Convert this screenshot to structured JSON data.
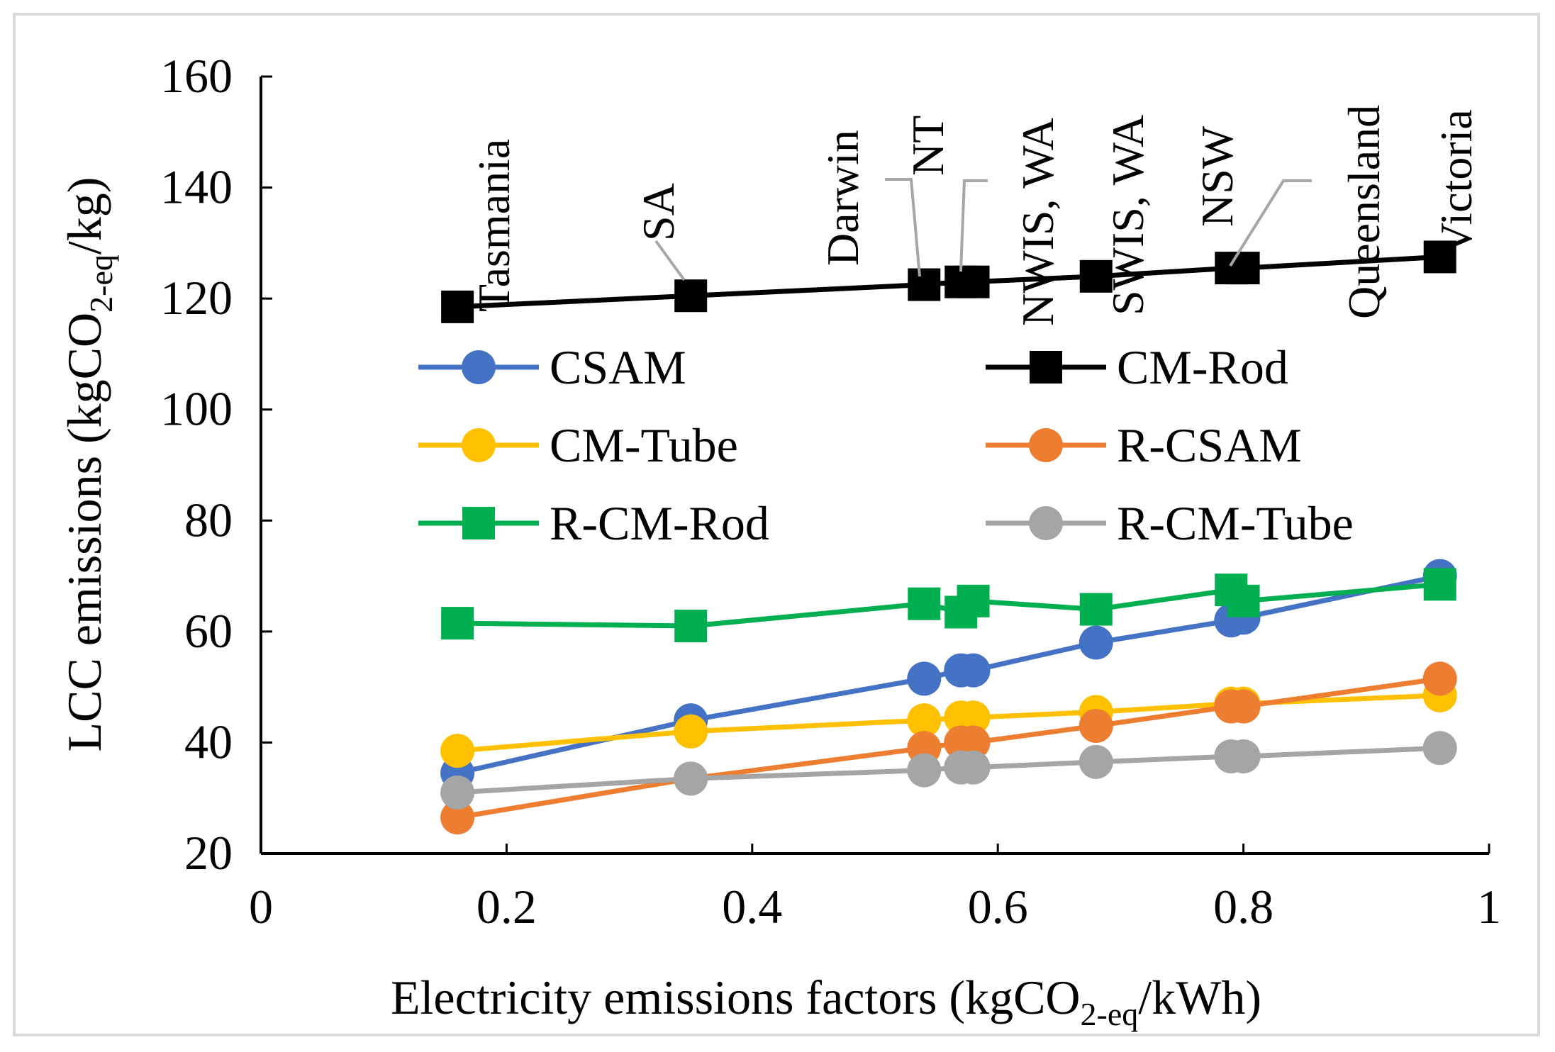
{
  "chart_data": {
    "type": "line",
    "title": "",
    "xlabel": {
      "prefix": "Electricity emissions factors (kgCO",
      "sub": "2-eq",
      "suffix": "/kWh)"
    },
    "ylabel": {
      "prefix": "LCC emissions (kgCO",
      "sub": "2-eq",
      "suffix": "/kg)"
    },
    "xlim": [
      0,
      1
    ],
    "ylim": [
      20,
      160
    ],
    "x_ticks": [
      "0",
      "0.2",
      "0.4",
      "0.6",
      "0.8",
      "1"
    ],
    "y_ticks": [
      "20",
      "40",
      "60",
      "80",
      "100",
      "120",
      "140",
      "160"
    ],
    "grid": false,
    "legend_position": "middle",
    "x": [
      0.16,
      0.35,
      0.54,
      0.57,
      0.58,
      0.68,
      0.79,
      0.8,
      0.96
    ],
    "series": [
      {
        "name": "CSAM",
        "color": "#4472C4",
        "marker": "circle",
        "values": [
          34.5,
          44,
          51.5,
          53,
          53,
          58,
          62,
          62.5,
          70
        ]
      },
      {
        "name": "CM-Rod",
        "color": "#000000",
        "marker": "square",
        "values": [
          118.5,
          120.5,
          122.5,
          123,
          123,
          124,
          125.5,
          125.5,
          127.5
        ]
      },
      {
        "name": "CM-Tube",
        "color": "#FFC000",
        "marker": "circle",
        "values": [
          38.5,
          42,
          44,
          44.5,
          44.5,
          45.5,
          47,
          47,
          48.5
        ]
      },
      {
        "name": "R-CSAM",
        "color": "#ED7D31",
        "marker": "circle",
        "values": [
          26.5,
          33.5,
          39,
          40,
          40,
          43,
          46.5,
          46.5,
          51.5
        ]
      },
      {
        "name": "R-CM-Rod",
        "color": "#00B050",
        "marker": "square",
        "values": [
          61.5,
          61,
          65,
          63.5,
          65.5,
          64,
          67.5,
          65.5,
          68.5
        ]
      },
      {
        "name": "R-CM-Tube",
        "color": "#A5A5A5",
        "marker": "circle",
        "values": [
          31,
          33.5,
          35,
          35.5,
          35.5,
          36.5,
          37.5,
          37.5,
          39
        ]
      }
    ],
    "annotations": [
      {
        "text": "Tasmania",
        "x": 0.16,
        "y": 118.5
      },
      {
        "text": "SA",
        "x": 0.35,
        "y": 120.5
      },
      {
        "text": "Darwin",
        "x": 0.54,
        "y": 122.5
      },
      {
        "text": "NT",
        "x": 0.57,
        "y": 123
      },
      {
        "text": "NWIS, WA",
        "x": 0.58,
        "y": 123
      },
      {
        "text": "SWIS, WA",
        "x": 0.68,
        "y": 124
      },
      {
        "text": "NSW",
        "x": 0.79,
        "y": 125.5
      },
      {
        "text": "Queensland",
        "x": 0.8,
        "y": 125.5
      },
      {
        "text": "Victoria",
        "x": 0.96,
        "y": 127.5
      }
    ]
  }
}
